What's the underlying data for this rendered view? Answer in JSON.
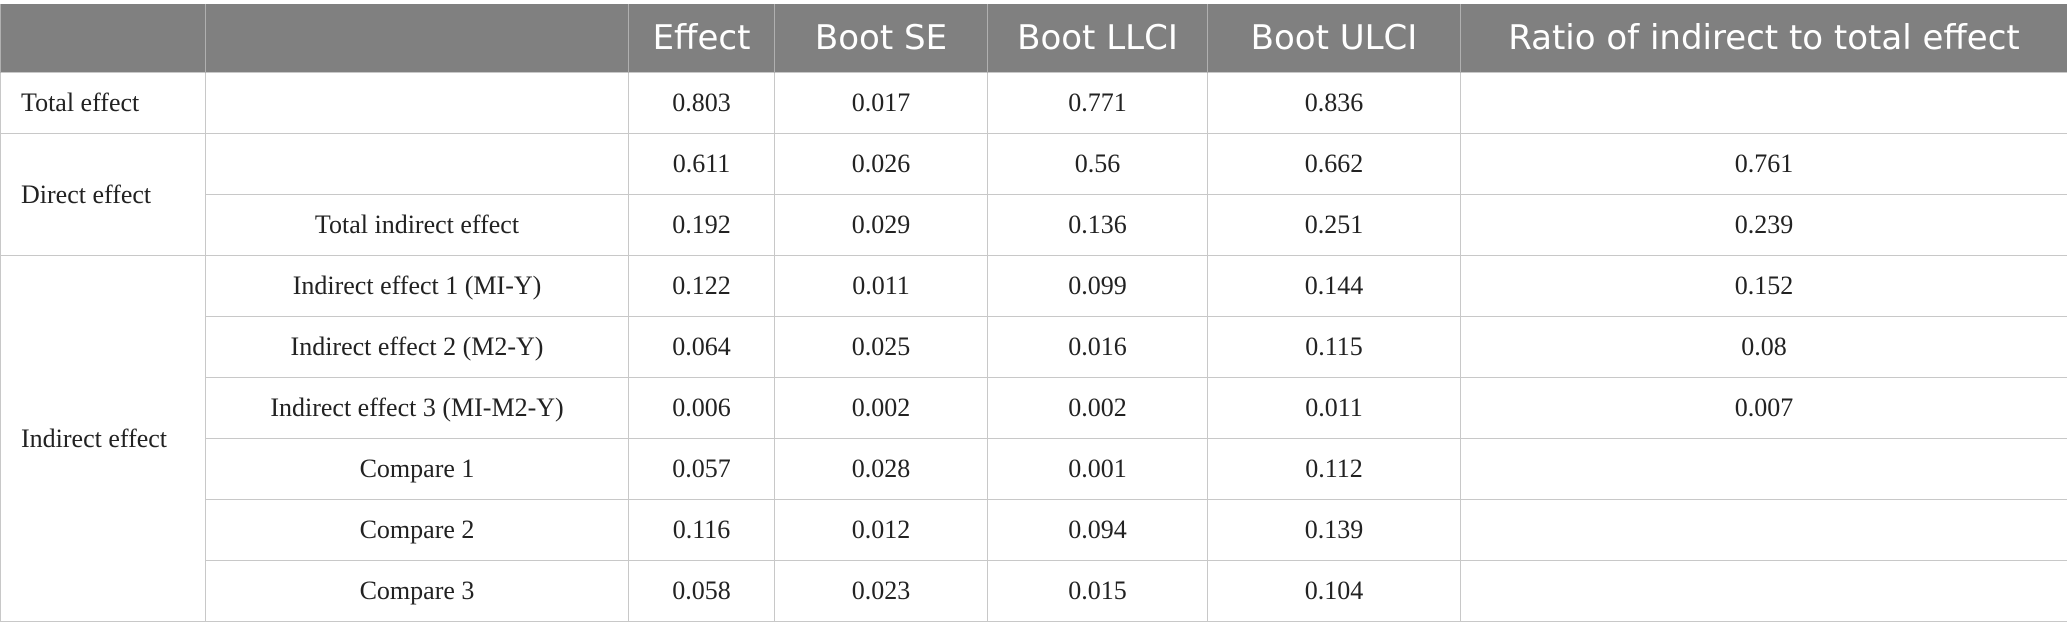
{
  "header": [
    "",
    "",
    "Effect",
    "Boot SE",
    "Boot LLCI",
    "Boot ULCI",
    "Ratio of indirect to total effect"
  ],
  "groups": {
    "total": "Total effect",
    "direct": "Direct effect",
    "indirect": "Indirect effect"
  },
  "rows": [
    {
      "label": "",
      "effect": "0.803",
      "se": "0.017",
      "llci": "0.771",
      "ulci": "0.836",
      "ratio": ""
    },
    {
      "label": "",
      "effect": "0.611",
      "se": "0.026",
      "llci": "0.56",
      "ulci": "0.662",
      "ratio": "0.761"
    },
    {
      "label": "Total indirect effect",
      "effect": "0.192",
      "se": "0.029",
      "llci": "0.136",
      "ulci": "0.251",
      "ratio": "0.239"
    },
    {
      "label": "Indirect effect 1 (MI-Y)",
      "effect": "0.122",
      "se": "0.011",
      "llci": "0.099",
      "ulci": "0.144",
      "ratio": "0.152"
    },
    {
      "label": "Indirect effect 2 (M2-Y)",
      "effect": "0.064",
      "se": "0.025",
      "llci": "0.016",
      "ulci": "0.115",
      "ratio": "0.08"
    },
    {
      "label": "Indirect effect 3 (MI-M2-Y)",
      "effect": "0.006",
      "se": "0.002",
      "llci": "0.002",
      "ulci": "0.011",
      "ratio": "0.007"
    },
    {
      "label": "Compare 1",
      "effect": "0.057",
      "se": "0.028",
      "llci": "0.001",
      "ulci": "0.112",
      "ratio": ""
    },
    {
      "label": "Compare 2",
      "effect": "0.116",
      "se": "0.012",
      "llci": "0.094",
      "ulci": "0.139",
      "ratio": ""
    },
    {
      "label": "Compare 3",
      "effect": "0.058",
      "se": "0.023",
      "llci": "0.015",
      "ulci": "0.104",
      "ratio": ""
    }
  ]
}
